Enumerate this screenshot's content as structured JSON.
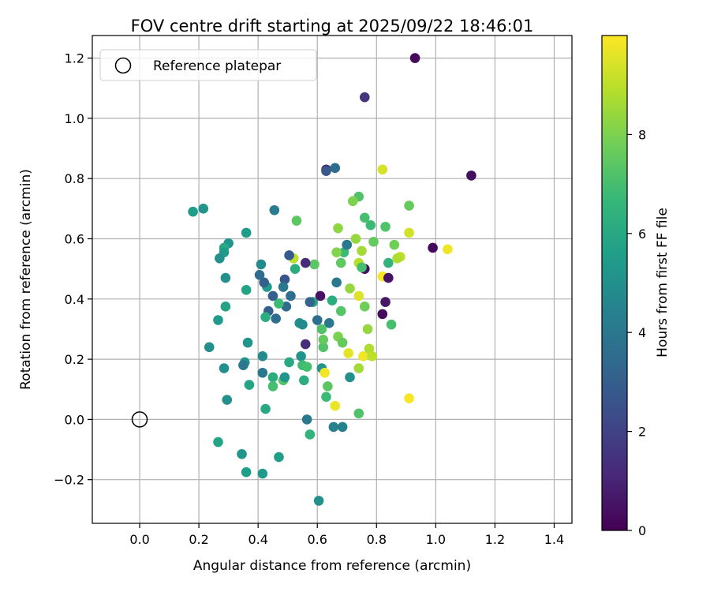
{
  "chart_data": {
    "type": "scatter",
    "title": "FOV centre drift starting at 2025/09/22 18:46:01",
    "xlabel": "Angular distance from reference (arcmin)",
    "ylabel": "Rotation from reference (arcmin)",
    "xlim": [
      -0.16,
      1.46
    ],
    "ylim": [
      -0.345,
      1.275
    ],
    "xticks": [
      0.0,
      0.2,
      0.4,
      0.6,
      0.8,
      1.0,
      1.2,
      1.4
    ],
    "xtick_labels": [
      "0.0",
      "0.2",
      "0.4",
      "0.6",
      "0.8",
      "1.0",
      "1.2",
      "1.4"
    ],
    "yticks": [
      -0.2,
      0.0,
      0.2,
      0.4,
      0.6,
      0.8,
      1.0,
      1.2
    ],
    "ytick_labels": [
      "−0.2",
      "0.0",
      "0.2",
      "0.4",
      "0.6",
      "0.8",
      "1.0",
      "1.2"
    ],
    "grid": true,
    "legend": {
      "label": "Reference platepar",
      "position": "top-left"
    },
    "reference_point": {
      "x": 0.0,
      "y": 0.0
    },
    "colorbar": {
      "label": "Hours from first FF file",
      "range": [
        0,
        10
      ],
      "ticks": [
        0,
        2,
        4,
        6,
        8
      ],
      "tick_labels": [
        "0",
        "2",
        "4",
        "6",
        "8"
      ],
      "colormap": "viridis",
      "colormap_stops": [
        "#440154",
        "#482878",
        "#3e4989",
        "#31688e",
        "#26828e",
        "#1f9e89",
        "#35b779",
        "#6ece58",
        "#b5de2b",
        "#fde725"
      ]
    },
    "points": [
      {
        "x": 0.93,
        "y": 1.2,
        "h": 0.3
      },
      {
        "x": 0.76,
        "y": 1.07,
        "h": 1.5
      },
      {
        "x": 1.12,
        "y": 0.81,
        "h": 0.4
      },
      {
        "x": 0.63,
        "y": 0.83,
        "h": 1.2
      },
      {
        "x": 0.66,
        "y": 0.835,
        "h": 3.5
      },
      {
        "x": 0.63,
        "y": 0.825,
        "h": 2.8
      },
      {
        "x": 0.82,
        "y": 0.83,
        "h": 9.4
      },
      {
        "x": 0.99,
        "y": 0.57,
        "h": 0.3
      },
      {
        "x": 1.04,
        "y": 0.565,
        "h": 9.8
      },
      {
        "x": 0.91,
        "y": 0.71,
        "h": 7.6
      },
      {
        "x": 0.91,
        "y": 0.62,
        "h": 9.3
      },
      {
        "x": 0.88,
        "y": 0.54,
        "h": 9.0
      },
      {
        "x": 0.87,
        "y": 0.535,
        "h": 8.8
      },
      {
        "x": 0.86,
        "y": 0.58,
        "h": 7.8
      },
      {
        "x": 0.84,
        "y": 0.52,
        "h": 6.5
      },
      {
        "x": 0.83,
        "y": 0.64,
        "h": 7.2
      },
      {
        "x": 0.79,
        "y": 0.59,
        "h": 7.6
      },
      {
        "x": 0.78,
        "y": 0.645,
        "h": 6.8
      },
      {
        "x": 0.76,
        "y": 0.67,
        "h": 7.0
      },
      {
        "x": 0.74,
        "y": 0.74,
        "h": 7.2
      },
      {
        "x": 0.72,
        "y": 0.725,
        "h": 8.0
      },
      {
        "x": 0.73,
        "y": 0.6,
        "h": 8.4
      },
      {
        "x": 0.75,
        "y": 0.56,
        "h": 8.6
      },
      {
        "x": 0.7,
        "y": 0.58,
        "h": 7.4
      },
      {
        "x": 0.69,
        "y": 0.555,
        "h": 6.8
      },
      {
        "x": 0.67,
        "y": 0.635,
        "h": 8.3
      },
      {
        "x": 0.665,
        "y": 0.555,
        "h": 8.1
      },
      {
        "x": 0.68,
        "y": 0.52,
        "h": 7.5
      },
      {
        "x": 0.7,
        "y": 0.58,
        "h": 4.0
      },
      {
        "x": 0.74,
        "y": 0.52,
        "h": 8.9
      },
      {
        "x": 0.76,
        "y": 0.5,
        "h": 0.4
      },
      {
        "x": 0.75,
        "y": 0.505,
        "h": 7.0
      },
      {
        "x": 0.82,
        "y": 0.475,
        "h": 9.9
      },
      {
        "x": 0.84,
        "y": 0.47,
        "h": 0.5
      },
      {
        "x": 0.83,
        "y": 0.39,
        "h": 0.6
      },
      {
        "x": 0.82,
        "y": 0.35,
        "h": 0.3
      },
      {
        "x": 0.85,
        "y": 0.315,
        "h": 7.0
      },
      {
        "x": 0.74,
        "y": 0.41,
        "h": 9.5
      },
      {
        "x": 0.76,
        "y": 0.375,
        "h": 7.8
      },
      {
        "x": 0.71,
        "y": 0.435,
        "h": 8.4
      },
      {
        "x": 0.665,
        "y": 0.455,
        "h": 4.0
      },
      {
        "x": 0.68,
        "y": 0.36,
        "h": 7.3
      },
      {
        "x": 0.65,
        "y": 0.395,
        "h": 6.2
      },
      {
        "x": 0.64,
        "y": 0.32,
        "h": 4.0
      },
      {
        "x": 0.61,
        "y": 0.41,
        "h": 0.5
      },
      {
        "x": 0.6,
        "y": 0.33,
        "h": 3.6
      },
      {
        "x": 0.59,
        "y": 0.515,
        "h": 7.4
      },
      {
        "x": 0.585,
        "y": 0.39,
        "h": 5.8
      },
      {
        "x": 0.575,
        "y": 0.39,
        "h": 3.2
      },
      {
        "x": 0.56,
        "y": 0.52,
        "h": 1.2
      },
      {
        "x": 0.525,
        "y": 0.5,
        "h": 6.2
      },
      {
        "x": 0.52,
        "y": 0.535,
        "h": 9.0
      },
      {
        "x": 0.505,
        "y": 0.545,
        "h": 2.8
      },
      {
        "x": 0.53,
        "y": 0.66,
        "h": 7.4
      },
      {
        "x": 0.51,
        "y": 0.41,
        "h": 3.6
      },
      {
        "x": 0.49,
        "y": 0.465,
        "h": 2.7
      },
      {
        "x": 0.485,
        "y": 0.44,
        "h": 4.0
      },
      {
        "x": 0.495,
        "y": 0.375,
        "h": 3.5
      },
      {
        "x": 0.47,
        "y": 0.385,
        "h": 6.8
      },
      {
        "x": 0.45,
        "y": 0.41,
        "h": 3.0
      },
      {
        "x": 0.46,
        "y": 0.335,
        "h": 3.5
      },
      {
        "x": 0.43,
        "y": 0.44,
        "h": 5.4
      },
      {
        "x": 0.42,
        "y": 0.455,
        "h": 3.0
      },
      {
        "x": 0.405,
        "y": 0.48,
        "h": 3.5
      },
      {
        "x": 0.41,
        "y": 0.515,
        "h": 4.8
      },
      {
        "x": 0.435,
        "y": 0.36,
        "h": 3.0
      },
      {
        "x": 0.425,
        "y": 0.34,
        "h": 6.2
      },
      {
        "x": 0.415,
        "y": 0.21,
        "h": 4.8
      },
      {
        "x": 0.415,
        "y": 0.155,
        "h": 4.0
      },
      {
        "x": 0.455,
        "y": 0.695,
        "h": 4.2
      },
      {
        "x": 0.36,
        "y": 0.62,
        "h": 5.5
      },
      {
        "x": 0.36,
        "y": 0.43,
        "h": 5.8
      },
      {
        "x": 0.365,
        "y": 0.255,
        "h": 5.2
      },
      {
        "x": 0.355,
        "y": 0.19,
        "h": 5.0
      },
      {
        "x": 0.35,
        "y": 0.18,
        "h": 4.0
      },
      {
        "x": 0.37,
        "y": 0.115,
        "h": 5.8
      },
      {
        "x": 0.3,
        "y": 0.585,
        "h": 5.2
      },
      {
        "x": 0.285,
        "y": 0.57,
        "h": 6.0
      },
      {
        "x": 0.285,
        "y": 0.555,
        "h": 5.4
      },
      {
        "x": 0.27,
        "y": 0.535,
        "h": 5.0
      },
      {
        "x": 0.29,
        "y": 0.47,
        "h": 5.0
      },
      {
        "x": 0.29,
        "y": 0.375,
        "h": 5.8
      },
      {
        "x": 0.265,
        "y": 0.33,
        "h": 5.4
      },
      {
        "x": 0.285,
        "y": 0.17,
        "h": 5.0
      },
      {
        "x": 0.295,
        "y": 0.065,
        "h": 5.0
      },
      {
        "x": 0.235,
        "y": 0.24,
        "h": 5.0
      },
      {
        "x": 0.215,
        "y": 0.7,
        "h": 5.2
      },
      {
        "x": 0.18,
        "y": 0.69,
        "h": 5.5
      },
      {
        "x": 0.265,
        "y": -0.075,
        "h": 5.8
      },
      {
        "x": 0.345,
        "y": -0.115,
        "h": 5.2
      },
      {
        "x": 0.36,
        "y": -0.175,
        "h": 5.6
      },
      {
        "x": 0.415,
        "y": -0.18,
        "h": 5.4
      },
      {
        "x": 0.47,
        "y": -0.125,
        "h": 5.6
      },
      {
        "x": 0.425,
        "y": 0.035,
        "h": 6.0
      },
      {
        "x": 0.45,
        "y": 0.14,
        "h": 6.2
      },
      {
        "x": 0.45,
        "y": 0.11,
        "h": 7.0
      },
      {
        "x": 0.485,
        "y": 0.13,
        "h": 7.3
      },
      {
        "x": 0.49,
        "y": 0.14,
        "h": 5.2
      },
      {
        "x": 0.505,
        "y": 0.19,
        "h": 6.0
      },
      {
        "x": 0.545,
        "y": 0.21,
        "h": 5.2
      },
      {
        "x": 0.55,
        "y": 0.18,
        "h": 6.8
      },
      {
        "x": 0.565,
        "y": 0.175,
        "h": 7.0
      },
      {
        "x": 0.555,
        "y": 0.13,
        "h": 6.2
      },
      {
        "x": 0.54,
        "y": 0.32,
        "h": 5.0
      },
      {
        "x": 0.55,
        "y": 0.315,
        "h": 4.8
      },
      {
        "x": 0.56,
        "y": 0.25,
        "h": 1.3
      },
      {
        "x": 0.565,
        "y": 0.0,
        "h": 4.0
      },
      {
        "x": 0.575,
        "y": -0.05,
        "h": 6.5
      },
      {
        "x": 0.605,
        "y": -0.27,
        "h": 5.0
      },
      {
        "x": 0.655,
        "y": -0.025,
        "h": 4.4
      },
      {
        "x": 0.685,
        "y": -0.025,
        "h": 4.4
      },
      {
        "x": 0.615,
        "y": 0.3,
        "h": 7.2
      },
      {
        "x": 0.62,
        "y": 0.24,
        "h": 7.2
      },
      {
        "x": 0.62,
        "y": 0.265,
        "h": 7.6
      },
      {
        "x": 0.615,
        "y": 0.17,
        "h": 5.2
      },
      {
        "x": 0.625,
        "y": 0.155,
        "h": 9.8
      },
      {
        "x": 0.635,
        "y": 0.11,
        "h": 7.4
      },
      {
        "x": 0.63,
        "y": 0.075,
        "h": 6.8
      },
      {
        "x": 0.66,
        "y": 0.045,
        "h": 9.7
      },
      {
        "x": 0.67,
        "y": 0.275,
        "h": 8.0
      },
      {
        "x": 0.685,
        "y": 0.255,
        "h": 7.6
      },
      {
        "x": 0.705,
        "y": 0.22,
        "h": 9.6
      },
      {
        "x": 0.71,
        "y": 0.14,
        "h": 5.0
      },
      {
        "x": 0.74,
        "y": 0.17,
        "h": 8.6
      },
      {
        "x": 0.755,
        "y": 0.21,
        "h": 9.8
      },
      {
        "x": 0.77,
        "y": 0.3,
        "h": 8.4
      },
      {
        "x": 0.775,
        "y": 0.235,
        "h": 8.8
      },
      {
        "x": 0.785,
        "y": 0.21,
        "h": 9.0
      },
      {
        "x": 0.74,
        "y": 0.02,
        "h": 7.2
      },
      {
        "x": 0.91,
        "y": 0.07,
        "h": 9.9
      }
    ]
  }
}
